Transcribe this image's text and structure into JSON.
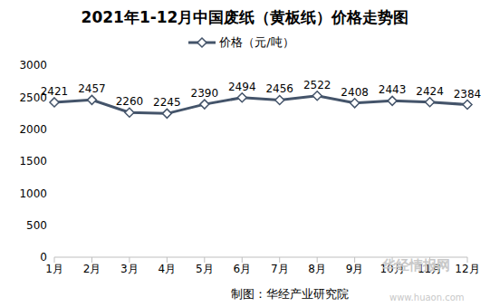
{
  "chart_data": {
    "type": "line",
    "title": "2021年1-12月中国废纸（黄板纸）价格走势图",
    "categories": [
      "1月",
      "2月",
      "3月",
      "4月",
      "5月",
      "6月",
      "7月",
      "8月",
      "9月",
      "10月",
      "11月",
      "12月"
    ],
    "series": [
      {
        "name": "价格（元/吨）",
        "color": "#44546a",
        "marker": "diamond",
        "values": [
          2421,
          2457,
          2260,
          2245,
          2390,
          2494,
          2456,
          2522,
          2408,
          2443,
          2424,
          2384
        ]
      }
    ],
    "ylim": [
      0,
      3000
    ],
    "yticks": [
      0,
      500,
      1000,
      1500,
      2000,
      2500,
      3000
    ],
    "grid": false,
    "data_labels": true,
    "legend": "top",
    "annotations": [
      "制图：华经产业研究院",
      "华经情报网",
      "www.huaon.com"
    ]
  }
}
